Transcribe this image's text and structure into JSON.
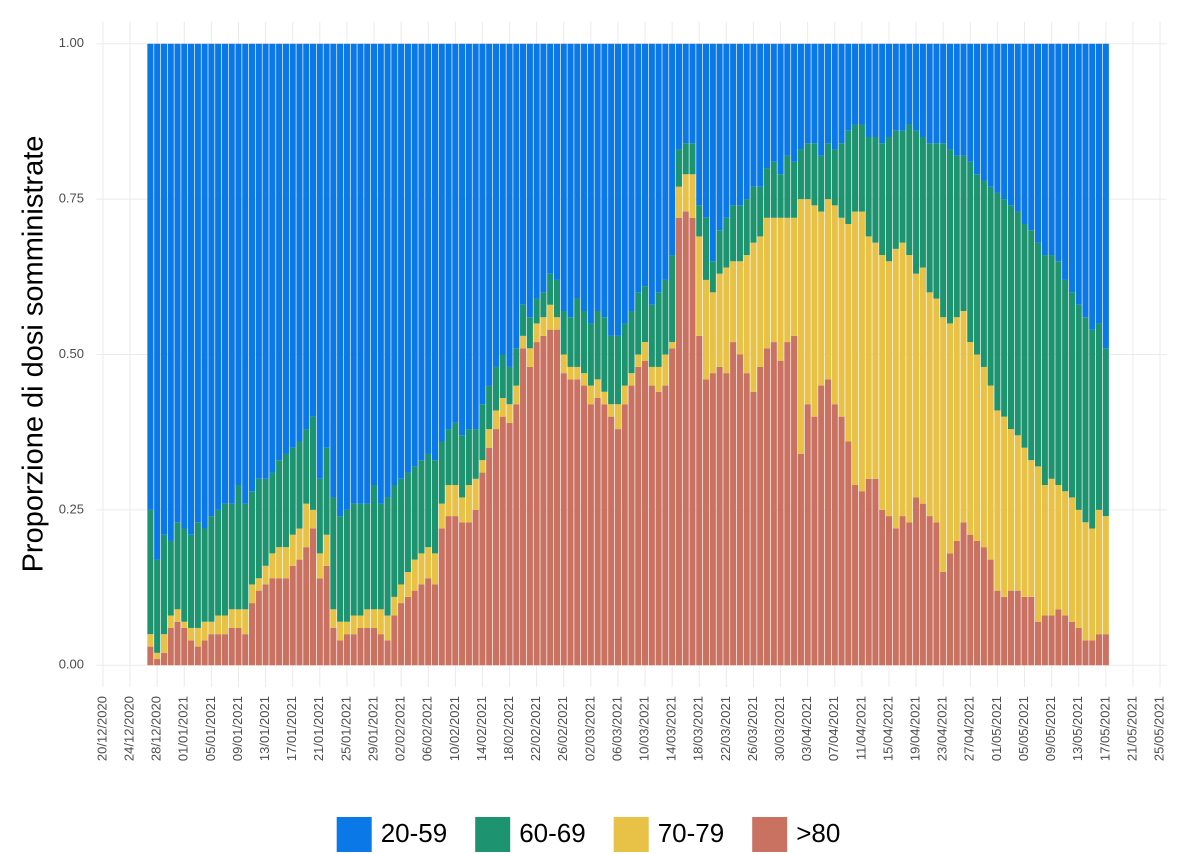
{
  "chart_data": {
    "type": "stacked-bar",
    "y_label": "Proporzione di dosi somministrate",
    "grid": true,
    "legend": "bottom",
    "xlim": [
      "19/12/2020",
      "26/05/2021"
    ],
    "xticks": [
      "20/12/2020",
      "24/12/2020",
      "28/12/2020",
      "01/01/2021",
      "05/01/2021",
      "09/01/2021",
      "13/01/2021",
      "17/01/2021",
      "21/01/2021",
      "25/01/2021",
      "29/01/2021",
      "02/02/2021",
      "06/02/2021",
      "10/02/2021",
      "14/02/2021",
      "18/02/2021",
      "22/02/2021",
      "26/02/2021",
      "02/03/2021",
      "06/03/2021",
      "10/03/2021",
      "14/03/2021",
      "18/03/2021",
      "22/03/2021",
      "26/03/2021",
      "30/03/2021",
      "03/04/2021",
      "07/04/2021",
      "11/04/2021",
      "15/04/2021",
      "19/04/2021",
      "23/04/2021",
      "27/04/2021",
      "01/05/2021",
      "05/05/2021",
      "09/05/2021",
      "13/05/2021",
      "17/05/2021",
      "21/05/2021",
      "25/05/2021"
    ],
    "ylim": [
      -0.035,
      1.035
    ],
    "yticks": [
      {
        "value": 0,
        "label": "0.00"
      },
      {
        "value": 0.25,
        "label": "0.25"
      },
      {
        "value": 0.5,
        "label": "0.50"
      },
      {
        "value": 0.75,
        "label": "0.75"
      },
      {
        "value": 1,
        "label": "1.00"
      }
    ],
    "x": [
      "27/12/2020",
      "28/12/2020",
      "29/12/2020",
      "30/12/2020",
      "31/12/2020",
      "01/01/2021",
      "02/01/2021",
      "03/01/2021",
      "04/01/2021",
      "05/01/2021",
      "06/01/2021",
      "07/01/2021",
      "08/01/2021",
      "09/01/2021",
      "10/01/2021",
      "11/01/2021",
      "12/01/2021",
      "13/01/2021",
      "14/01/2021",
      "15/01/2021",
      "16/01/2021",
      "17/01/2021",
      "18/01/2021",
      "19/01/2021",
      "20/01/2021",
      "21/01/2021",
      "22/01/2021",
      "23/01/2021",
      "24/01/2021",
      "25/01/2021",
      "26/01/2021",
      "27/01/2021",
      "28/01/2021",
      "29/01/2021",
      "30/01/2021",
      "31/01/2021",
      "01/02/2021",
      "02/02/2021",
      "03/02/2021",
      "04/02/2021",
      "05/02/2021",
      "06/02/2021",
      "07/02/2021",
      "08/02/2021",
      "09/02/2021",
      "10/02/2021",
      "11/02/2021",
      "12/02/2021",
      "13/02/2021",
      "14/02/2021",
      "15/02/2021",
      "16/02/2021",
      "17/02/2021",
      "18/02/2021",
      "19/02/2021",
      "20/02/2021",
      "21/02/2021",
      "22/02/2021",
      "23/02/2021",
      "24/02/2021",
      "25/02/2021",
      "26/02/2021",
      "27/02/2021",
      "28/02/2021",
      "01/03/2021",
      "02/03/2021",
      "03/03/2021",
      "04/03/2021",
      "05/03/2021",
      "06/03/2021",
      "07/03/2021",
      "08/03/2021",
      "09/03/2021",
      "10/03/2021",
      "11/03/2021",
      "12/03/2021",
      "13/03/2021",
      "14/03/2021",
      "15/03/2021",
      "16/03/2021",
      "17/03/2021",
      "18/03/2021",
      "19/03/2021",
      "20/03/2021",
      "21/03/2021",
      "22/03/2021",
      "23/03/2021",
      "24/03/2021",
      "25/03/2021",
      "26/03/2021",
      "27/03/2021",
      "28/03/2021",
      "29/03/2021",
      "30/03/2021",
      "31/03/2021",
      "01/04/2021",
      "02/04/2021",
      "03/04/2021",
      "04/04/2021",
      "05/04/2021",
      "06/04/2021",
      "07/04/2021",
      "08/04/2021",
      "09/04/2021",
      "10/04/2021",
      "11/04/2021",
      "12/04/2021",
      "13/04/2021",
      "14/04/2021",
      "15/04/2021",
      "16/04/2021",
      "17/04/2021",
      "18/04/2021",
      "19/04/2021",
      "20/04/2021",
      "21/04/2021",
      "22/04/2021",
      "23/04/2021",
      "24/04/2021",
      "25/04/2021",
      "26/04/2021",
      "27/04/2021",
      "28/04/2021",
      "29/04/2021",
      "30/04/2021",
      "01/05/2021",
      "02/05/2021",
      "03/05/2021",
      "04/05/2021",
      "05/05/2021",
      "06/05/2021",
      "07/05/2021",
      "08/05/2021",
      "09/05/2021",
      "10/05/2021",
      "11/05/2021",
      "12/05/2021",
      "13/05/2021",
      "14/05/2021",
      "15/05/2021",
      "16/05/2021",
      "17/05/2021"
    ],
    "series": [
      {
        "name": "20-59",
        "color": "#0a78e6",
        "values": [
          0.75,
          0.83,
          0.79,
          0.8,
          0.77,
          0.78,
          0.79,
          0.77,
          0.78,
          0.76,
          0.75,
          0.74,
          0.74,
          0.71,
          0.74,
          0.72,
          0.7,
          0.7,
          0.69,
          0.67,
          0.66,
          0.65,
          0.64,
          0.62,
          0.6,
          0.7,
          0.65,
          0.73,
          0.76,
          0.75,
          0.74,
          0.74,
          0.74,
          0.71,
          0.74,
          0.73,
          0.71,
          0.7,
          0.69,
          0.68,
          0.67,
          0.66,
          0.67,
          0.64,
          0.62,
          0.61,
          0.63,
          0.62,
          0.62,
          0.58,
          0.55,
          0.52,
          0.5,
          0.52,
          0.49,
          0.42,
          0.44,
          0.41,
          0.4,
          0.37,
          0.38,
          0.43,
          0.44,
          0.41,
          0.43,
          0.45,
          0.43,
          0.44,
          0.47,
          0.47,
          0.45,
          0.43,
          0.4,
          0.39,
          0.42,
          0.4,
          0.38,
          0.34,
          0.17,
          0.16,
          0.16,
          0.26,
          0.28,
          0.35,
          0.3,
          0.28,
          0.26,
          0.26,
          0.25,
          0.23,
          0.23,
          0.2,
          0.19,
          0.21,
          0.18,
          0.19,
          0.17,
          0.16,
          0.16,
          0.18,
          0.16,
          0.17,
          0.16,
          0.14,
          0.13,
          0.13,
          0.15,
          0.15,
          0.16,
          0.15,
          0.14,
          0.14,
          0.13,
          0.14,
          0.15,
          0.16,
          0.16,
          0.16,
          0.17,
          0.18,
          0.18,
          0.19,
          0.21,
          0.22,
          0.23,
          0.24,
          0.25,
          0.26,
          0.27,
          0.29,
          0.3,
          0.32,
          0.34,
          0.34,
          0.35,
          0.38,
          0.4,
          0.42,
          0.44,
          0.46,
          0.45,
          0.49
        ]
      },
      {
        "name": "60-69",
        "color": "#1d946f",
        "values": [
          0.2,
          0.15,
          0.16,
          0.12,
          0.14,
          0.15,
          0.15,
          0.17,
          0.15,
          0.17,
          0.17,
          0.18,
          0.17,
          0.2,
          0.17,
          0.15,
          0.16,
          0.14,
          0.13,
          0.14,
          0.15,
          0.14,
          0.14,
          0.12,
          0.15,
          0.12,
          0.14,
          0.18,
          0.17,
          0.18,
          0.18,
          0.18,
          0.17,
          0.2,
          0.17,
          0.19,
          0.18,
          0.17,
          0.16,
          0.15,
          0.15,
          0.15,
          0.15,
          0.1,
          0.09,
          0.1,
          0.1,
          0.09,
          0.08,
          0.09,
          0.07,
          0.07,
          0.07,
          0.06,
          0.06,
          0.05,
          0.05,
          0.04,
          0.04,
          0.05,
          0.06,
          0.07,
          0.08,
          0.11,
          0.1,
          0.1,
          0.11,
          0.12,
          0.11,
          0.11,
          0.1,
          0.1,
          0.1,
          0.09,
          0.1,
          0.12,
          0.12,
          0.14,
          0.06,
          0.05,
          0.05,
          0.05,
          0.1,
          0.05,
          0.07,
          0.08,
          0.09,
          0.09,
          0.09,
          0.09,
          0.08,
          0.08,
          0.09,
          0.07,
          0.1,
          0.09,
          0.08,
          0.09,
          0.1,
          0.09,
          0.09,
          0.09,
          0.12,
          0.15,
          0.14,
          0.14,
          0.16,
          0.17,
          0.18,
          0.2,
          0.19,
          0.18,
          0.21,
          0.23,
          0.21,
          0.24,
          0.25,
          0.28,
          0.28,
          0.26,
          0.25,
          0.29,
          0.29,
          0.3,
          0.32,
          0.35,
          0.35,
          0.36,
          0.36,
          0.36,
          0.37,
          0.36,
          0.37,
          0.36,
          0.36,
          0.34,
          0.33,
          0.33,
          0.33,
          0.32,
          0.3,
          0.27
        ]
      },
      {
        "name": "70-79",
        "color": "#e8c247",
        "values": [
          0.02,
          0.01,
          0.03,
          0.02,
          0.02,
          0.01,
          0.02,
          0.03,
          0.03,
          0.02,
          0.03,
          0.03,
          0.03,
          0.03,
          0.04,
          0.03,
          0.02,
          0.03,
          0.04,
          0.05,
          0.05,
          0.05,
          0.05,
          0.07,
          0.03,
          0.04,
          0.05,
          0.03,
          0.03,
          0.02,
          0.03,
          0.02,
          0.03,
          0.03,
          0.04,
          0.04,
          0.03,
          0.03,
          0.04,
          0.05,
          0.05,
          0.05,
          0.05,
          0.04,
          0.05,
          0.05,
          0.04,
          0.06,
          0.05,
          0.02,
          0.03,
          0.03,
          0.03,
          0.03,
          0.03,
          0.02,
          0.03,
          0.03,
          0.03,
          0.04,
          0.02,
          0.03,
          0.02,
          0.02,
          0.02,
          0.03,
          0.03,
          0.02,
          0.02,
          0.04,
          0.03,
          0.02,
          0.02,
          0.03,
          0.03,
          0.04,
          0.05,
          0.01,
          0.05,
          0.06,
          0.07,
          0.16,
          0.16,
          0.13,
          0.15,
          0.17,
          0.13,
          0.15,
          0.19,
          0.24,
          0.21,
          0.21,
          0.2,
          0.23,
          0.2,
          0.19,
          0.41,
          0.33,
          0.34,
          0.28,
          0.29,
          0.32,
          0.32,
          0.35,
          0.44,
          0.45,
          0.39,
          0.38,
          0.41,
          0.41,
          0.45,
          0.44,
          0.43,
          0.36,
          0.38,
          0.36,
          0.36,
          0.41,
          0.37,
          0.36,
          0.34,
          0.31,
          0.3,
          0.29,
          0.28,
          0.29,
          0.29,
          0.26,
          0.25,
          0.24,
          0.22,
          0.25,
          0.21,
          0.22,
          0.2,
          0.2,
          0.2,
          0.19,
          0.19,
          0.18,
          0.2,
          0.19
        ]
      },
      {
        "name": ">80",
        "color": "#c97262",
        "values": [
          0.03,
          0.01,
          0.02,
          0.06,
          0.07,
          0.06,
          0.04,
          0.03,
          0.04,
          0.05,
          0.05,
          0.05,
          0.06,
          0.06,
          0.05,
          0.1,
          0.12,
          0.13,
          0.14,
          0.14,
          0.14,
          0.16,
          0.17,
          0.19,
          0.22,
          0.14,
          0.16,
          0.06,
          0.04,
          0.05,
          0.05,
          0.06,
          0.06,
          0.06,
          0.05,
          0.04,
          0.08,
          0.1,
          0.11,
          0.12,
          0.13,
          0.14,
          0.13,
          0.22,
          0.24,
          0.24,
          0.23,
          0.23,
          0.25,
          0.31,
          0.35,
          0.38,
          0.4,
          0.39,
          0.42,
          0.51,
          0.48,
          0.52,
          0.53,
          0.54,
          0.54,
          0.47,
          0.46,
          0.46,
          0.45,
          0.42,
          0.43,
          0.42,
          0.4,
          0.38,
          0.42,
          0.45,
          0.48,
          0.49,
          0.45,
          0.44,
          0.45,
          0.51,
          0.72,
          0.73,
          0.72,
          0.53,
          0.46,
          0.47,
          0.48,
          0.47,
          0.52,
          0.5,
          0.47,
          0.44,
          0.48,
          0.51,
          0.52,
          0.49,
          0.52,
          0.53,
          0.34,
          0.42,
          0.4,
          0.45,
          0.46,
          0.42,
          0.4,
          0.36,
          0.29,
          0.28,
          0.3,
          0.3,
          0.25,
          0.24,
          0.22,
          0.24,
          0.23,
          0.27,
          0.26,
          0.24,
          0.23,
          0.15,
          0.18,
          0.2,
          0.23,
          0.21,
          0.2,
          0.19,
          0.17,
          0.12,
          0.11,
          0.12,
          0.12,
          0.11,
          0.11,
          0.07,
          0.08,
          0.08,
          0.09,
          0.08,
          0.07,
          0.06,
          0.04,
          0.04,
          0.05,
          0.05
        ]
      }
    ]
  }
}
